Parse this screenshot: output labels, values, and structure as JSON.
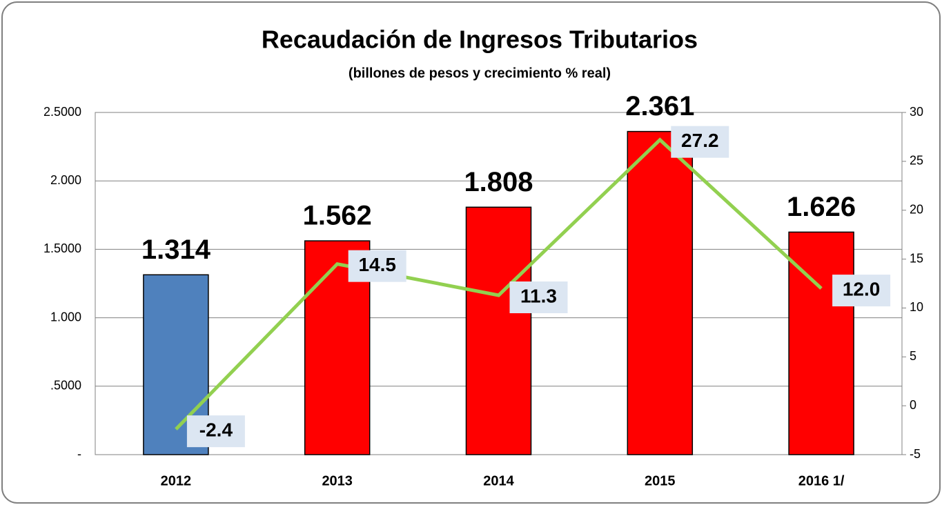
{
  "chart_data": {
    "type": "bar_line",
    "title": "Recaudación de Ingresos Tributarios",
    "subtitle": "(billones de pesos y crecimiento % real)",
    "categories": [
      "2012",
      "2013",
      "2014",
      "2015",
      "2016 1/"
    ],
    "series": [
      {
        "type": "bar",
        "colors": [
          "#4f81bd",
          "#ff0000",
          "#ff0000",
          "#ff0000",
          "#ff0000"
        ],
        "values": [
          1.314,
          1.562,
          1.808,
          2.361,
          1.626
        ]
      },
      {
        "type": "line",
        "axis": "y2",
        "color": "#92d050",
        "values": [
          -2.4,
          14.5,
          11.3,
          27.2,
          12.0
        ],
        "value_labels": [
          "-2.4",
          "14.5",
          "11.3",
          "27.2",
          "12.0"
        ]
      }
    ],
    "ylim": [
      0,
      2.5
    ],
    "yticks": [
      {
        "value": 0,
        "label": "-"
      },
      {
        "value": 0.5,
        "label": ".5000"
      },
      {
        "value": 1,
        "label": "1.000"
      },
      {
        "value": 1.5,
        "label": "1.5000"
      },
      {
        "value": 2,
        "label": "2.000"
      },
      {
        "value": 2.5,
        "label": "2.5000"
      }
    ],
    "y2lim": [
      -5,
      30
    ],
    "y2ticks": [
      -5,
      0,
      5,
      10,
      15,
      20,
      25,
      30
    ],
    "grid": true
  }
}
